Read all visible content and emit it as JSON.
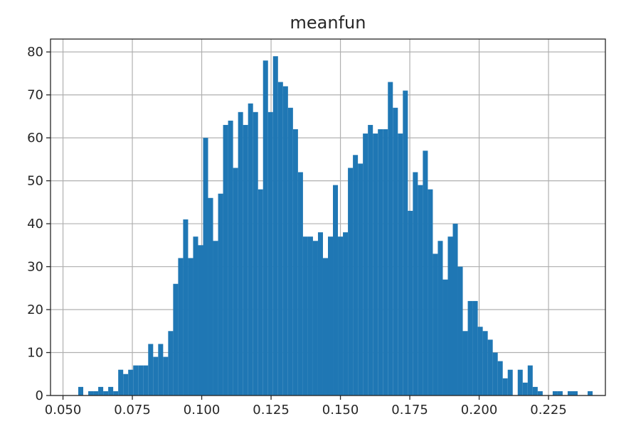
{
  "chart_data": {
    "type": "bar",
    "title": "meanfun",
    "xlabel": "",
    "ylabel": "",
    "grid": true,
    "bar_color": "#1f77b4",
    "xlim": [
      0.0455,
      0.2455
    ],
    "ylim": [
      0,
      83
    ],
    "xticks": [
      0.05,
      0.075,
      0.1,
      0.125,
      0.15,
      0.175,
      0.2,
      0.225
    ],
    "xtick_labels": [
      "0.050",
      "0.075",
      "0.100",
      "0.125",
      "0.150",
      "0.175",
      "0.200",
      "0.225"
    ],
    "yticks": [
      0,
      10,
      20,
      30,
      40,
      50,
      60,
      70,
      80
    ],
    "ytick_labels": [
      "0",
      "10",
      "20",
      "30",
      "40",
      "50",
      "60",
      "70",
      "80"
    ],
    "bin_start": 0.0555,
    "bin_width": 0.0018,
    "values": [
      2,
      0,
      1,
      1,
      2,
      1,
      2,
      1,
      6,
      5,
      6,
      7,
      7,
      7,
      12,
      9,
      12,
      9,
      15,
      26,
      32,
      41,
      32,
      37,
      35,
      60,
      46,
      36,
      47,
      63,
      64,
      53,
      66,
      63,
      68,
      66,
      48,
      78,
      66,
      79,
      73,
      72,
      67,
      62,
      52,
      37,
      37,
      36,
      38,
      32,
      37,
      49,
      37,
      38,
      53,
      56,
      54,
      61,
      63,
      61,
      62,
      62,
      73,
      67,
      61,
      71,
      43,
      52,
      49,
      57,
      48,
      33,
      36,
      27,
      37,
      40,
      30,
      15,
      22,
      22,
      16,
      15,
      13,
      10,
      8,
      4,
      6,
      0,
      6,
      3,
      7,
      2,
      1,
      0,
      0,
      1,
      1,
      0,
      1,
      1,
      0,
      0,
      1
    ]
  }
}
